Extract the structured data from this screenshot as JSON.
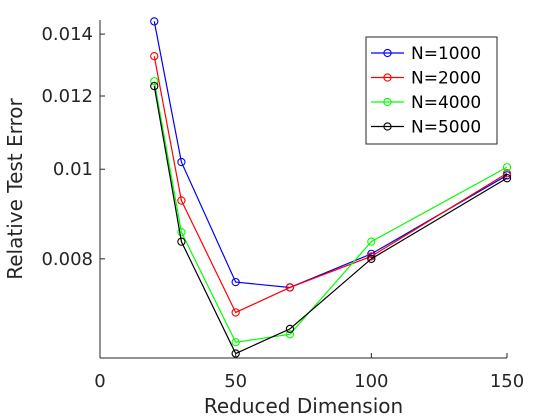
{
  "chart_data": {
    "type": "line",
    "title": "",
    "xlabel": "Reduced Dimension",
    "ylabel": "Relative Test Error",
    "xlim": [
      0,
      150
    ],
    "ylim": [
      0.00625,
      0.0145
    ],
    "yscale": "log",
    "x": [
      20,
      30,
      50,
      70,
      100,
      150
    ],
    "xticks": [
      0,
      50,
      100,
      150
    ],
    "xtick_labels": [
      "0",
      "50",
      "100",
      "150"
    ],
    "yticks": [
      0.008,
      0.01,
      0.012,
      0.014
    ],
    "ytick_labels": [
      "0.008",
      "0.01",
      "0.012",
      "0.014"
    ],
    "grid": false,
    "legend_position": "top-right",
    "series": [
      {
        "name": "N=1000",
        "color": "#0000ff",
        "values": [
          0.01445,
          0.01018,
          0.00755,
          0.00745,
          0.0081,
          0.00985
        ]
      },
      {
        "name": "N=2000",
        "color": "#ff0000",
        "values": [
          0.01325,
          0.00925,
          0.007,
          0.00745,
          0.00805,
          0.0099
        ]
      },
      {
        "name": "N=4000",
        "color": "#00ff00",
        "values": [
          0.01245,
          0.00855,
          0.0065,
          0.00663,
          0.00835,
          0.01005
        ]
      },
      {
        "name": "N=5000",
        "color": "#000000",
        "values": [
          0.0123,
          0.00835,
          0.00632,
          0.00672,
          0.008,
          0.00978
        ]
      }
    ]
  }
}
